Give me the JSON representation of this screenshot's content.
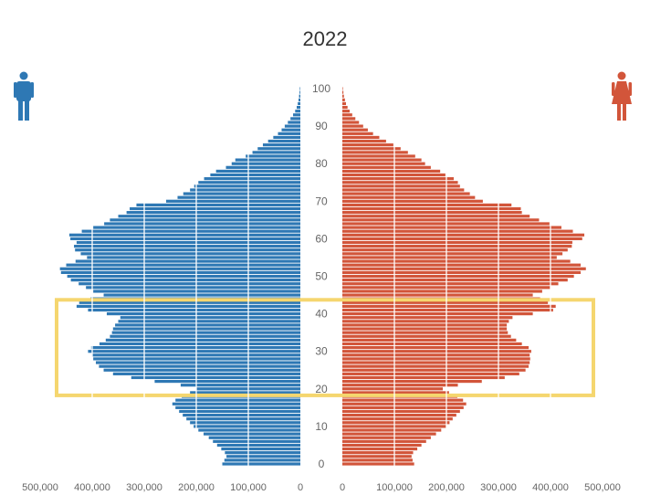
{
  "chart_data": {
    "type": "bar",
    "orientation": "horizontal",
    "title": "2022",
    "xlabel": "",
    "ylabel": "",
    "age_ticks": [
      "0",
      "10",
      "20",
      "30",
      "40",
      "50",
      "60",
      "70",
      "80",
      "90",
      "100"
    ],
    "value_ticks": [
      "500,000",
      "400,000",
      "300,000",
      "200,000",
      "100,000",
      "0"
    ],
    "value_range": [
      0,
      500000
    ],
    "age_range": [
      0,
      100
    ],
    "grid": true,
    "highlight": {
      "age_from": 19,
      "age_to": 43,
      "color": "#F5D66F"
    },
    "colors": {
      "male": "#2E78B4",
      "female": "#D2553A"
    },
    "icons": {
      "male": "person-male-icon",
      "female": "person-female-icon"
    },
    "series": [
      {
        "side": "left",
        "values": [
          150000,
          146000,
          142000,
          145000,
          152000,
          160000,
          168000,
          176000,
          186000,
          196000,
          205000,
          212000,
          219000,
          226000,
          233000,
          240000,
          246000,
          240000,
          228000,
          212000,
          200000,
          230000,
          280000,
          325000,
          360000,
          378000,
          387000,
          393000,
          398000,
          401000,
          408000,
          402000,
          386000,
          374000,
          366000,
          362000,
          360000,
          356000,
          350000,
          346000,
          372000,
          408000,
          430000,
          425000,
          403000,
          378000,
          398000,
          412000,
          426000,
          441000,
          448000,
          460000,
          462000,
          450000,
          432000,
          410000,
          422000,
          433000,
          435000,
          430000,
          442000,
          444000,
          420000,
          398000,
          377000,
          366000,
          350000,
          334000,
          328000,
          315000,
          258000,
          236000,
          225000,
          212000,
          204000,
          196000,
          185000,
          173000,
          162000,
          143000,
          132000,
          125000,
          105000,
          92000,
          82000,
          72000,
          62000,
          52000,
          43000,
          36000,
          30000,
          24000,
          19000,
          14000,
          10000,
          7000,
          5000,
          3500,
          2500,
          1500,
          1000
        ]
      },
      {
        "side": "right",
        "values": [
          138000,
          135000,
          133000,
          136000,
          144000,
          152000,
          161000,
          170000,
          180000,
          190000,
          199000,
          206000,
          212000,
          219000,
          226000,
          233000,
          238000,
          232000,
          221000,
          205000,
          193000,
          222000,
          268000,
          312000,
          340000,
          352000,
          358000,
          360000,
          361000,
          360000,
          363000,
          358000,
          345000,
          334000,
          324000,
          318000,
          316000,
          316000,
          320000,
          327000,
          366000,
          405000,
          410000,
          395000,
          380000,
          366000,
          384000,
          399000,
          415000,
          433000,
          445000,
          458000,
          468000,
          458000,
          438000,
          412000,
          423000,
          433000,
          441000,
          442000,
          461000,
          465000,
          443000,
          421000,
          398000,
          378000,
          360000,
          345000,
          343000,
          325000,
          270000,
          255000,
          245000,
          234000,
          226000,
          222000,
          214000,
          198000,
          188000,
          170000,
          159000,
          152000,
          140000,
          126000,
          112000,
          98000,
          84000,
          71000,
          59000,
          49000,
          40000,
          32000,
          25000,
          19000,
          14000,
          10000,
          7000,
          5000,
          3000,
          2000,
          1000
        ]
      }
    ]
  }
}
